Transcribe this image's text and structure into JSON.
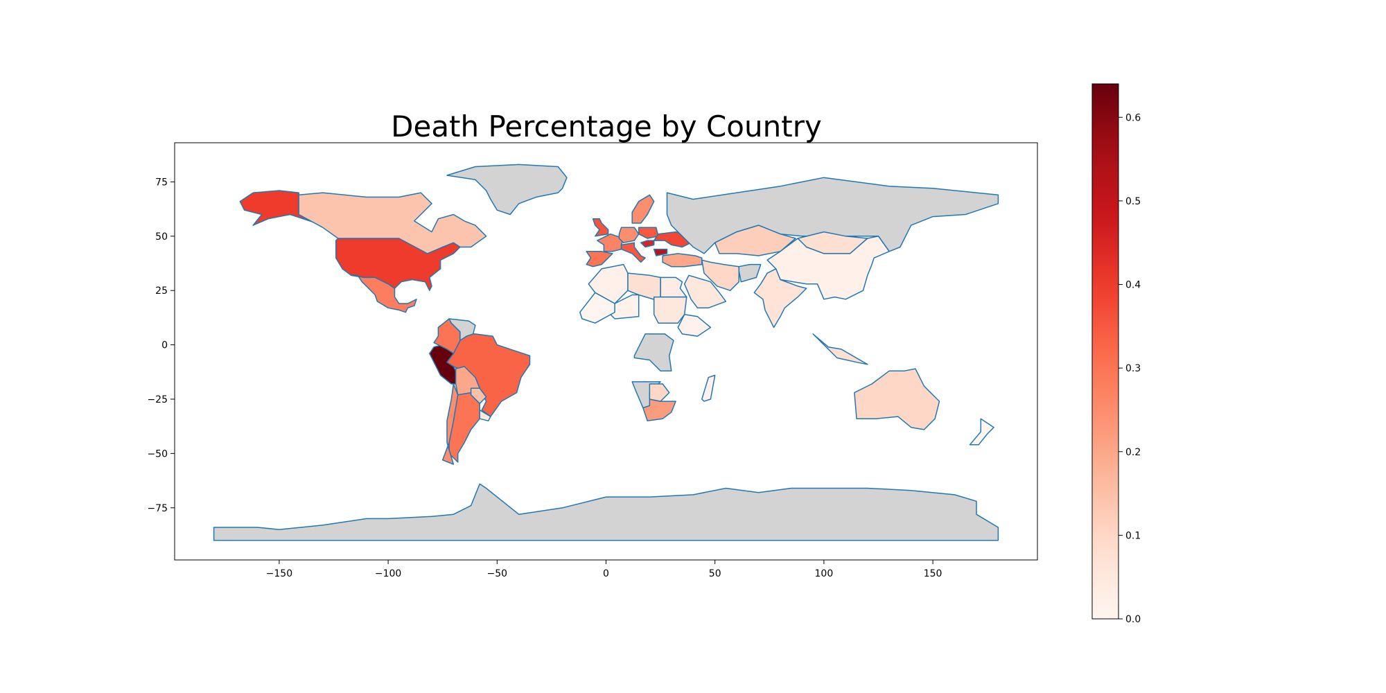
{
  "chart_data": {
    "type": "choropleth-map",
    "title": "Death Percentage by Country",
    "xlabel": "",
    "ylabel": "",
    "xlim": [
      -198,
      198
    ],
    "ylim": [
      -99,
      93
    ],
    "x_ticks": [
      -150,
      -100,
      -50,
      0,
      50,
      100,
      150
    ],
    "y_ticks": [
      -75,
      -50,
      -25,
      0,
      25,
      50,
      75
    ],
    "colorbar": {
      "cmap": "Reds",
      "vmin": 0.0,
      "vmax": 0.64,
      "ticks": [
        0.0,
        0.1,
        0.2,
        0.3,
        0.4,
        0.5,
        0.6
      ],
      "tick_labels": [
        "0.0",
        "0.1",
        "0.2",
        "0.3",
        "0.4",
        "0.5",
        "0.6"
      ]
    },
    "edge_color": "#1f77b4",
    "missing_color": "#d3d3d3",
    "regions": [
      {
        "name": "Peru",
        "value": 0.64
      },
      {
        "name": "Bulgaria",
        "value": 0.52
      },
      {
        "name": "Hungary",
        "value": 0.45
      },
      {
        "name": "Alaska (United States)",
        "value": 0.4
      },
      {
        "name": "United States",
        "value": 0.4
      },
      {
        "name": "Brazil",
        "value": 0.33
      },
      {
        "name": "Argentina",
        "value": 0.3
      },
      {
        "name": "Mexico",
        "value": 0.28
      },
      {
        "name": "Italy",
        "value": 0.35
      },
      {
        "name": "United Kingdom",
        "value": 0.36
      },
      {
        "name": "Spain",
        "value": 0.3
      },
      {
        "name": "Poland",
        "value": 0.35
      },
      {
        "name": "Ukraine",
        "value": 0.38
      },
      {
        "name": "France",
        "value": 0.27
      },
      {
        "name": "Germany",
        "value": 0.25
      },
      {
        "name": "Sweden",
        "value": 0.25
      },
      {
        "name": "Colombia",
        "value": 0.3
      },
      {
        "name": "Chile",
        "value": 0.25
      },
      {
        "name": "Canada",
        "value": 0.14
      },
      {
        "name": "Greenland",
        "value": null
      },
      {
        "name": "Russia",
        "value": null
      },
      {
        "name": "Antarctica",
        "value": null
      },
      {
        "name": "Venezuela",
        "value": null
      },
      {
        "name": "Bolivia",
        "value": 0.2
      },
      {
        "name": "Paraguay",
        "value": 0.15
      },
      {
        "name": "Uruguay",
        "value": 0.05
      },
      {
        "name": "South Africa",
        "value": 0.22
      },
      {
        "name": "Namibia",
        "value": null
      },
      {
        "name": "Botswana",
        "value": 0.1
      },
      {
        "name": "DR Congo",
        "value": null
      },
      {
        "name": "Egypt",
        "value": 0.03
      },
      {
        "name": "Libya",
        "value": 0.08
      },
      {
        "name": "Algeria",
        "value": 0.02
      },
      {
        "name": "Niger",
        "value": 0.01
      },
      {
        "name": "Mali",
        "value": 0.0
      },
      {
        "name": "Sudan",
        "value": 0.05
      },
      {
        "name": "Ethiopia",
        "value": 0.01
      },
      {
        "name": "Kazakhstan",
        "value": 0.12
      },
      {
        "name": "Mongolia",
        "value": 0.08
      },
      {
        "name": "China",
        "value": 0.02
      },
      {
        "name": "India",
        "value": 0.07
      },
      {
        "name": "Iran",
        "value": 0.1
      },
      {
        "name": "Saudi Arabia",
        "value": 0.05
      },
      {
        "name": "Afghanistan",
        "value": null
      },
      {
        "name": "Turkey",
        "value": 0.2
      },
      {
        "name": "Australia",
        "value": 0.1
      },
      {
        "name": "Indonesia",
        "value": 0.08
      },
      {
        "name": "New Zealand",
        "value": 0.0
      },
      {
        "name": "Madagascar",
        "value": 0.01
      }
    ]
  }
}
